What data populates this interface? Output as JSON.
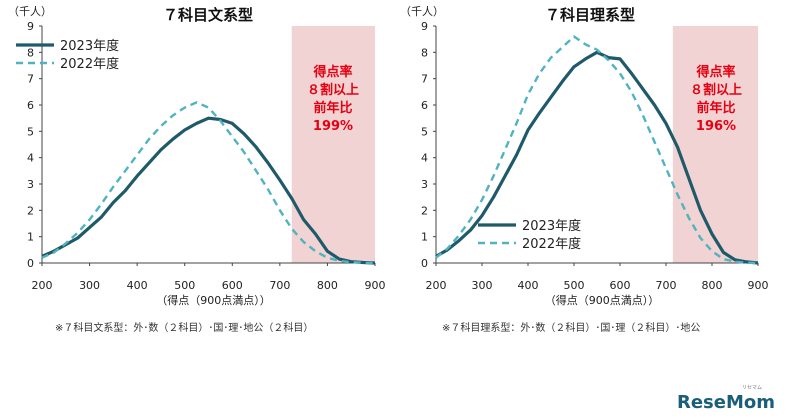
{
  "colors": {
    "series2023": "#1f5a6b",
    "series2022": "#4fb3c0",
    "shade": "#f2d3d3",
    "annotation": "#e60012"
  },
  "chart_data": [
    {
      "type": "line",
      "title": "７科目文系型",
      "unit": "（千人）",
      "xlabel": "（得点（900点満点））",
      "xlim": [
        200,
        900
      ],
      "ylim": [
        0,
        9
      ],
      "xticks": [
        200,
        300,
        400,
        500,
        600,
        700,
        800,
        900
      ],
      "yticks": [
        0,
        1,
        2,
        3,
        4,
        5,
        6,
        7,
        8,
        9
      ],
      "shade_from": 725,
      "annotation": [
        "得点率",
        "８割以上",
        "前年比",
        "199%"
      ],
      "footnote": "※７科目文系型：外･数（２科目）･国･理･地公（２科目）",
      "series": [
        {
          "name": "2023年度",
          "style": "solid",
          "legend_label": "2023年度",
          "x": [
            200,
            225,
            250,
            275,
            300,
            325,
            350,
            375,
            400,
            425,
            450,
            475,
            500,
            525,
            550,
            575,
            600,
            625,
            650,
            675,
            700,
            725,
            750,
            775,
            800,
            825,
            850,
            875,
            900
          ],
          "y": [
            0.25,
            0.45,
            0.7,
            0.95,
            1.35,
            1.75,
            2.3,
            2.75,
            3.3,
            3.8,
            4.3,
            4.7,
            5.05,
            5.3,
            5.5,
            5.45,
            5.3,
            4.9,
            4.4,
            3.8,
            3.15,
            2.45,
            1.65,
            1.1,
            0.45,
            0.15,
            0.05,
            0.02,
            0.0
          ]
        },
        {
          "name": "2022年度",
          "style": "dashed",
          "legend_label": "2022年度",
          "x": [
            200,
            225,
            250,
            275,
            300,
            325,
            350,
            375,
            400,
            425,
            450,
            475,
            500,
            525,
            550,
            575,
            600,
            625,
            650,
            675,
            700,
            725,
            750,
            775,
            800,
            825,
            850,
            875,
            900
          ],
          "y": [
            0.2,
            0.4,
            0.75,
            1.15,
            1.65,
            2.25,
            2.9,
            3.5,
            4.1,
            4.7,
            5.2,
            5.6,
            5.9,
            6.1,
            5.9,
            5.4,
            4.8,
            4.2,
            3.5,
            2.8,
            2.0,
            1.3,
            0.8,
            0.45,
            0.2,
            0.08,
            0.03,
            0.01,
            0.0
          ]
        }
      ]
    },
    {
      "type": "line",
      "title": "７科目理系型",
      "unit": "（千人）",
      "xlabel": "（得点（900点満点））",
      "xlim": [
        200,
        900
      ],
      "ylim": [
        0,
        9
      ],
      "xticks": [
        200,
        300,
        400,
        500,
        600,
        700,
        800,
        900
      ],
      "yticks": [
        0,
        1,
        2,
        3,
        4,
        5,
        6,
        7,
        8,
        9
      ],
      "shade_from": 715,
      "annotation": [
        "得点率",
        "８割以上",
        "前年比",
        "196%"
      ],
      "footnote": "※７科目理系型：外･数（２科目）･国･理（２科目）･地公",
      "series": [
        {
          "name": "2023年度",
          "style": "solid",
          "legend_label": "2023年度",
          "x": [
            200,
            225,
            250,
            275,
            300,
            325,
            350,
            375,
            400,
            425,
            450,
            475,
            500,
            525,
            550,
            575,
            600,
            625,
            650,
            675,
            700,
            725,
            750,
            775,
            800,
            825,
            850,
            875,
            900
          ],
          "y": [
            0.25,
            0.5,
            0.85,
            1.25,
            1.8,
            2.5,
            3.3,
            4.1,
            5.05,
            5.7,
            6.3,
            6.9,
            7.45,
            7.75,
            8.0,
            7.8,
            7.75,
            7.2,
            6.6,
            6.0,
            5.3,
            4.4,
            3.2,
            2.0,
            1.1,
            0.4,
            0.12,
            0.04,
            0.0
          ]
        },
        {
          "name": "2022年度",
          "style": "dashed",
          "legend_label": "2022年度",
          "x": [
            200,
            225,
            250,
            275,
            300,
            325,
            350,
            375,
            400,
            425,
            450,
            475,
            500,
            525,
            550,
            575,
            600,
            625,
            650,
            675,
            700,
            725,
            750,
            775,
            800,
            825,
            850,
            875,
            900
          ],
          "y": [
            0.2,
            0.55,
            1.05,
            1.65,
            2.4,
            3.3,
            4.3,
            5.3,
            6.4,
            7.2,
            7.8,
            8.2,
            8.6,
            8.3,
            8.1,
            7.7,
            7.2,
            6.5,
            5.6,
            4.6,
            3.6,
            2.6,
            1.7,
            0.95,
            0.45,
            0.15,
            0.05,
            0.01,
            0.0
          ]
        }
      ]
    }
  ],
  "watermark": {
    "logo": "ReseMom",
    "logo_small": "リセマム"
  }
}
